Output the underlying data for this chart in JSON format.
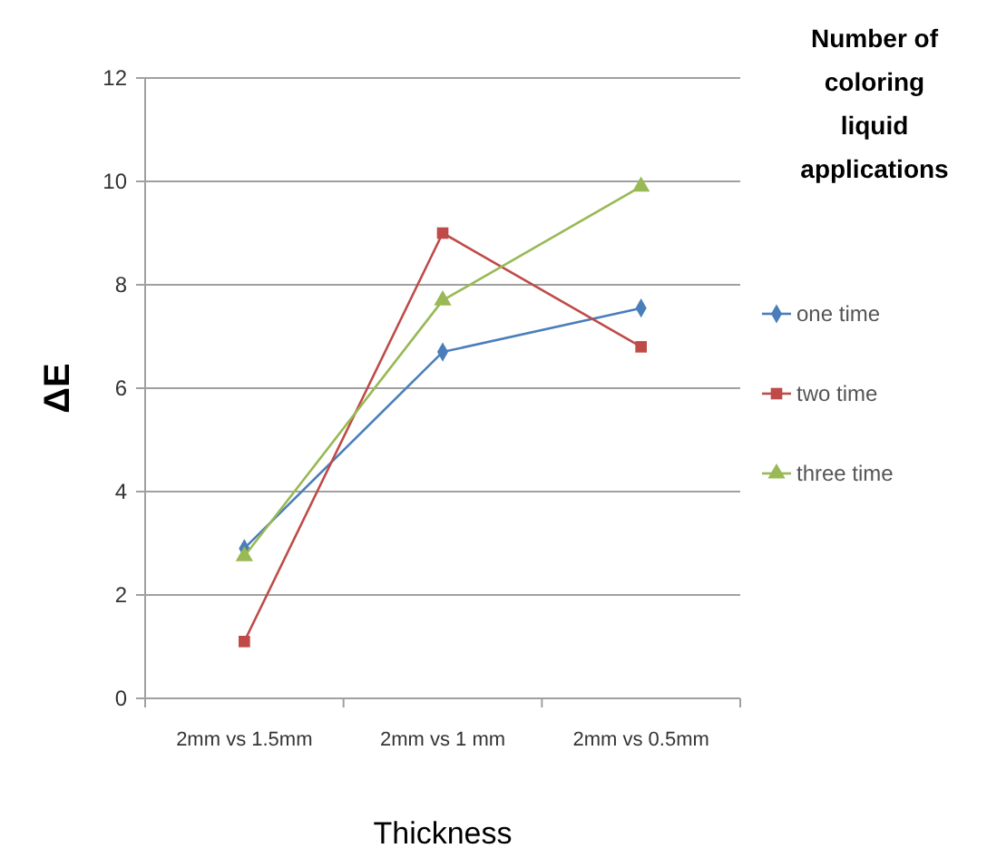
{
  "chart_data": {
    "type": "line",
    "xlabel": "Thickness",
    "ylabel": "ΔE",
    "legend_title": "Number of coloring liquid applications",
    "categories": [
      "2mm vs 1.5mm",
      "2mm vs 1 mm",
      "2mm vs 0.5mm"
    ],
    "series": [
      {
        "name": "one time",
        "color": "#4a7ebb",
        "marker": "diamond",
        "values": [
          2.9,
          6.7,
          7.55
        ]
      },
      {
        "name": "two time",
        "color": "#be4b48",
        "marker": "square",
        "values": [
          1.1,
          9.0,
          6.8
        ]
      },
      {
        "name": "three time",
        "color": "#98b954",
        "marker": "triangle",
        "values": [
          2.75,
          7.7,
          9.9
        ]
      }
    ],
    "ylim": [
      0,
      12
    ],
    "yticks": [
      0,
      2,
      4,
      6,
      8,
      10,
      12
    ],
    "grid": "y",
    "legend": "right"
  }
}
